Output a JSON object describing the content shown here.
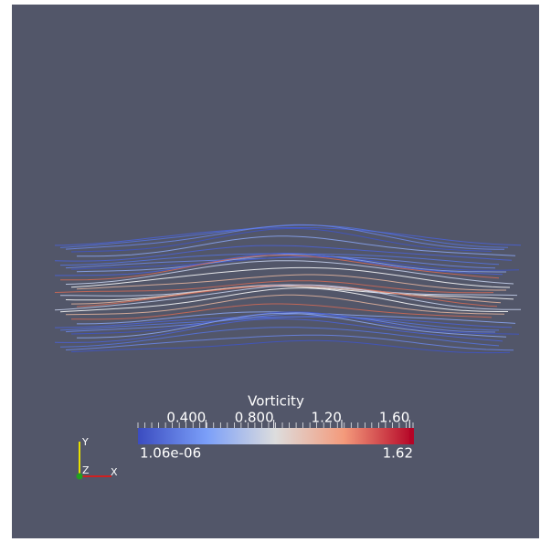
{
  "color_legend": {
    "title": "Vorticity",
    "range": [
      {
        "value": 1.06e-06,
        "label": "1.06e-06"
      },
      1.62
    ],
    "ticks": [
      {
        "value": 0.4,
        "label": "0.400"
      },
      {
        "value": 0.8,
        "label": "0.800"
      },
      {
        "value": 1.2,
        "label": "1.20"
      },
      {
        "value": 1.6,
        "label": "1.60"
      }
    ]
  },
  "axes": {
    "y": "Y",
    "z": "Z",
    "x": "X"
  }
}
